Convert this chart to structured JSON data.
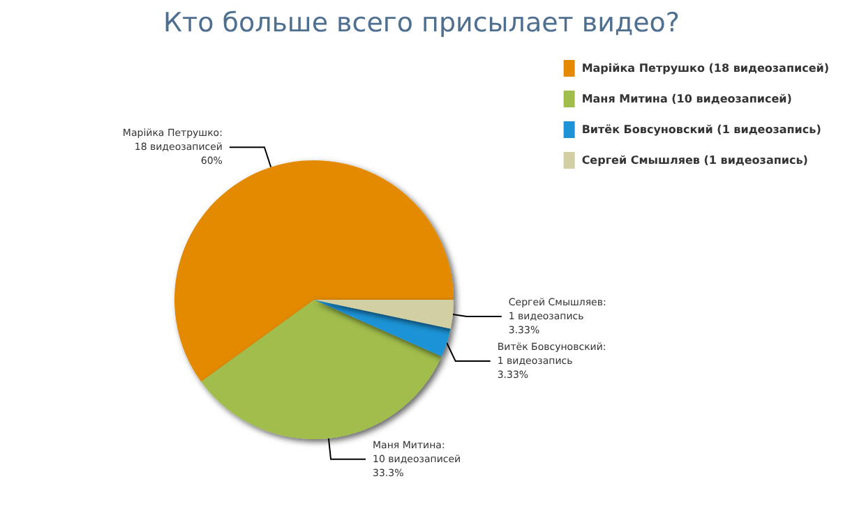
{
  "chart_data": {
    "type": "pie",
    "title": "Кто больше всего присылает видео?",
    "categories": [
      "Марійка Петрушко (18 видеозаписей)",
      "Маня Митина (10 видеозаписей)",
      "Витёк Бовсуновский (1 видеозапись)",
      "Сергей Смышляев (1 видеозапись)"
    ],
    "values": [
      18,
      10,
      1,
      1
    ],
    "colors": [
      "#e38a00",
      "#a1bd4c",
      "#1e93d6",
      "#d2cfa3"
    ],
    "value_labels": [
      "Марійка Петрушко:\n18 видеозаписей\n60%",
      "Маня Митина:\n10 видеозаписей\n33.3%",
      "Витёк Бовсуновский:\n1 видеозапись\n3.33%",
      "Сергей Смышляев:\n1 видеозапись\n3.33%"
    ],
    "legend": "top right"
  }
}
